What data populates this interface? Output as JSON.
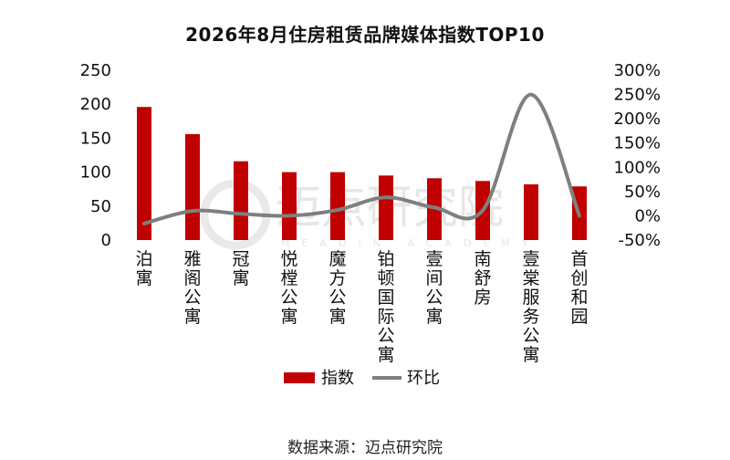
{
  "chart_data": {
    "type": "bar",
    "title": "2026年8月住房租赁品牌媒体指数TOP10",
    "categories": [
      "泊寓",
      "雅阁公寓",
      "冠寓",
      "悦樘公寓",
      "魔方公寓",
      "铂顿国际公寓",
      "壹间公寓",
      "南舒房",
      "壹棠服务公寓",
      "首创和园"
    ],
    "series": [
      {
        "name": "指数",
        "type": "bar",
        "axis": "left",
        "color": "#c00000",
        "values": [
          196,
          156,
          116,
          100,
          100,
          95,
          91,
          87,
          82,
          79
        ]
      },
      {
        "name": "环比",
        "type": "line",
        "axis": "right",
        "color": "#7f7f7f",
        "values": [
          -0.16,
          0.1,
          0.04,
          0.0,
          0.12,
          0.38,
          0.17,
          0.11,
          2.5,
          0.0
        ]
      }
    ],
    "y_left": {
      "min": 0,
      "max": 250,
      "step": 50,
      "ticks": [
        "0",
        "50",
        "100",
        "150",
        "200",
        "250"
      ]
    },
    "y_right": {
      "min": -0.5,
      "max": 3.0,
      "step": 0.5,
      "ticks": [
        "-50%",
        "0%",
        "50%",
        "100%",
        "150%",
        "200%",
        "250%",
        "300%"
      ]
    },
    "legend": {
      "position": "bottom",
      "items": [
        "指数",
        "环比"
      ]
    },
    "grid": false
  },
  "source_note": "数据来源：迈点研究院",
  "watermark": {
    "text": "迈点研究院",
    "subtext": "MEADIN ACADEMY"
  }
}
